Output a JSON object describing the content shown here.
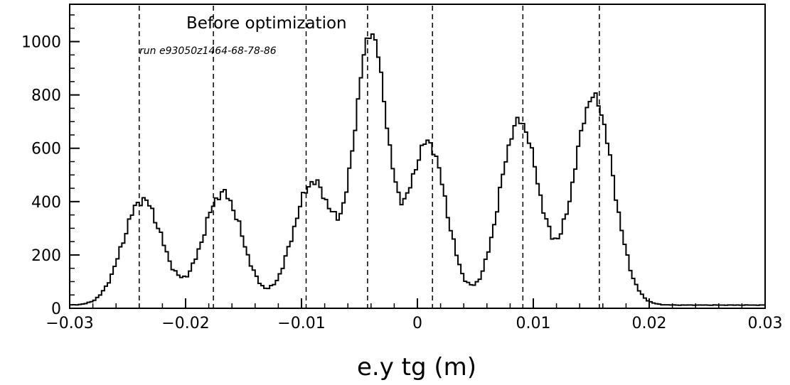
{
  "chart_data": {
    "type": "histogram",
    "title": "Before optimization",
    "subtitle": "run e93050z1464-68-78-86",
    "xlabel": "e.y tg (m)",
    "ylabel": "",
    "xlim": [
      -0.03,
      0.03
    ],
    "ylim": [
      0,
      1140
    ],
    "x_ticks": [
      -0.03,
      -0.02,
      -0.01,
      0,
      0.01,
      0.02,
      0.03
    ],
    "x_tick_labels": [
      "−0.03",
      "−0.02",
      "−0.01",
      "0",
      "0.01",
      "0.02",
      "0.03"
    ],
    "y_ticks": [
      0,
      200,
      400,
      600,
      800,
      1000
    ],
    "y_tick_labels": [
      "0",
      "200",
      "400",
      "600",
      "800",
      "1000"
    ],
    "grid": false,
    "reference_lines_x": [
      -0.024,
      -0.0176,
      -0.0096,
      -0.0043,
      0.0013,
      0.0091,
      0.0157
    ],
    "peaks": [
      {
        "center": -0.0237,
        "height": 395,
        "width": 0.0017
      },
      {
        "center": -0.0168,
        "height": 420,
        "width": 0.0017
      },
      {
        "center": -0.009,
        "height": 460,
        "width": 0.0017
      },
      {
        "center": -0.004,
        "height": 1010,
        "width": 0.0014
      },
      {
        "center": 0.0009,
        "height": 610,
        "width": 0.0016
      },
      {
        "center": 0.0088,
        "height": 690,
        "width": 0.0017
      },
      {
        "center": 0.0152,
        "height": 780,
        "width": 0.0017
      }
    ],
    "baseline": 12
  }
}
